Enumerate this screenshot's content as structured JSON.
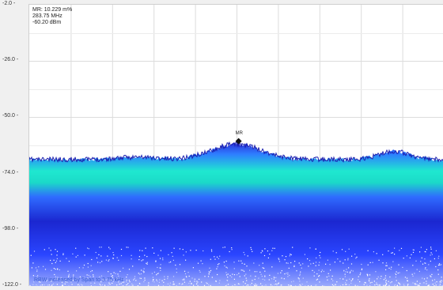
{
  "y_axis": {
    "unit": "dBm",
    "ticks": [
      "-2.0",
      "-26.0",
      "-50.0",
      "-74.0",
      "-98.0",
      "-122.0"
    ],
    "min": -122.0,
    "max": -2.0
  },
  "marker": {
    "name": "MR",
    "readout": [
      "MR: 10.229 m%",
      "283.75 MHz",
      "-60.20 dBm"
    ],
    "level_dbm": -60.2
  },
  "rbw_note": "RBW increased by Span to 3.75 kHz",
  "colors": {
    "noise_dark": "#1a22c8",
    "noise_mid": "#2f7bff",
    "noise_peak": "#19f0c8",
    "grid": "#dcdcdc",
    "background": "#ffffff"
  }
}
